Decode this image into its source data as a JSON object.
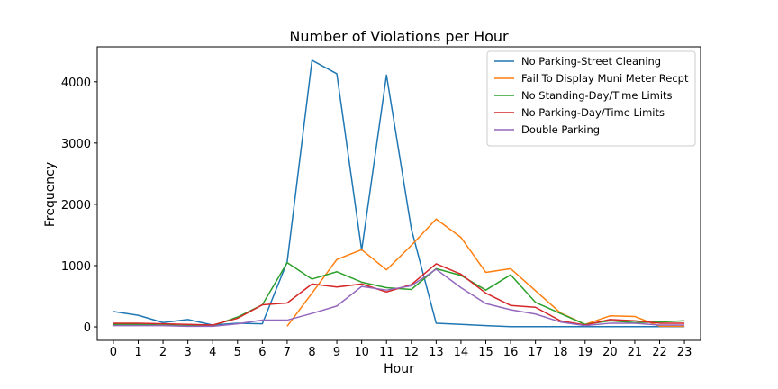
{
  "chart_data": {
    "type": "line",
    "title": "Number of Violations per Hour",
    "xlabel": "Hour",
    "ylabel": "Frequency",
    "x": [
      0,
      1,
      2,
      3,
      4,
      5,
      6,
      7,
      8,
      9,
      10,
      11,
      12,
      13,
      14,
      15,
      16,
      17,
      18,
      19,
      20,
      21,
      22,
      23
    ],
    "xlim": [
      -0.65,
      23.65
    ],
    "ylim": [
      -220,
      4570
    ],
    "yticks": [
      0,
      1000,
      2000,
      3000,
      4000
    ],
    "grid": false,
    "legend_position": "top-right",
    "series": [
      {
        "name": "No Parking-Street Cleaning",
        "color": "#1f77b4",
        "values": [
          250,
          190,
          70,
          120,
          30,
          60,
          50,
          1060,
          4350,
          4130,
          1250,
          4110,
          1600,
          60,
          40,
          20,
          5,
          5,
          5,
          5,
          5,
          5,
          5,
          5
        ]
      },
      {
        "name": "Fail To Display Muni Meter Recpt",
        "color": "#ff7f0e",
        "values": [
          null,
          null,
          null,
          null,
          null,
          null,
          null,
          10,
          550,
          1100,
          1260,
          930,
          1330,
          1760,
          1460,
          890,
          950,
          590,
          230,
          40,
          180,
          170,
          10,
          10
        ]
      },
      {
        "name": "No Standing-Day/Time Limits",
        "color": "#2ca02c",
        "values": [
          40,
          40,
          30,
          20,
          20,
          160,
          360,
          1050,
          780,
          900,
          730,
          640,
          610,
          950,
          840,
          600,
          850,
          400,
          220,
          40,
          100,
          70,
          80,
          100
        ]
      },
      {
        "name": "No Parking-Day/Time Limits",
        "color": "#d62728",
        "values": [
          60,
          60,
          50,
          40,
          30,
          140,
          360,
          390,
          700,
          650,
          700,
          570,
          690,
          1030,
          860,
          550,
          350,
          320,
          100,
          30,
          120,
          100,
          60,
          60
        ]
      },
      {
        "name": "Double Parking",
        "color": "#9467bd",
        "values": [
          20,
          20,
          20,
          10,
          10,
          50,
          110,
          110,
          220,
          340,
          660,
          600,
          670,
          940,
          640,
          380,
          280,
          210,
          80,
          20,
          60,
          60,
          30,
          30
        ]
      }
    ]
  }
}
